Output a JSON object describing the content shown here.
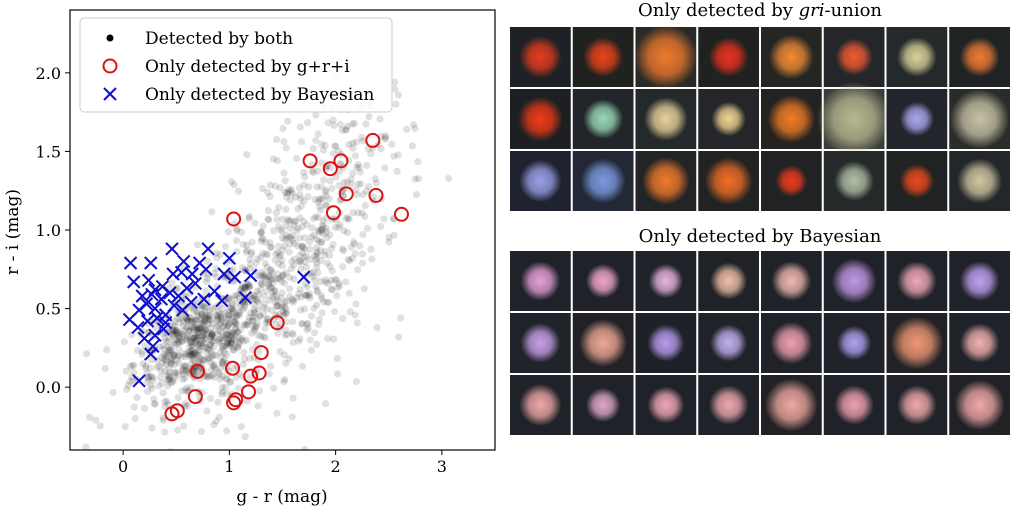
{
  "chart_data": {
    "type": "scatter",
    "xlabel": "g - r (mag)",
    "ylabel": "r - i (mag)",
    "xlim": [
      -0.5,
      3.5
    ],
    "ylim": [
      -0.4,
      2.4
    ],
    "xticks": [
      0,
      1,
      2,
      3
    ],
    "yticks": [
      0.0,
      0.5,
      1.0,
      1.5,
      2.0
    ],
    "xtick_labels": [
      "0",
      "1",
      "2",
      "3"
    ],
    "ytick_labels": [
      "0.0",
      "0.5",
      "1.0",
      "1.5",
      "2.0"
    ],
    "legend_position": "upper-left",
    "series": [
      {
        "name": "Detected by both",
        "marker": "filled-dot",
        "color": "#000000",
        "alpha": 0.12,
        "clusters": [
          {
            "cx": 0.7,
            "cy": 0.3,
            "sx": 0.3,
            "sy": 0.15,
            "n": 520
          },
          {
            "cx": 1.35,
            "cy": 0.62,
            "sx": 0.35,
            "sy": 0.22,
            "n": 260
          },
          {
            "cx": 1.75,
            "cy": 1.05,
            "sx": 0.35,
            "sy": 0.3,
            "n": 220
          },
          {
            "cx": 2.15,
            "cy": 1.4,
            "sx": 0.35,
            "sy": 0.28,
            "n": 120
          },
          {
            "cx": 1.1,
            "cy": 0.15,
            "sx": 0.55,
            "sy": 0.28,
            "n": 170
          }
        ]
      },
      {
        "name": "Only detected by g+r+i",
        "marker": "open-circle",
        "color": "#dd1111",
        "points": [
          [
            2.35,
            1.57
          ],
          [
            1.76,
            1.44
          ],
          [
            1.95,
            1.39
          ],
          [
            2.05,
            1.44
          ],
          [
            2.1,
            1.23
          ],
          [
            2.38,
            1.22
          ],
          [
            1.98,
            1.11
          ],
          [
            2.62,
            1.1
          ],
          [
            1.04,
            1.07
          ],
          [
            1.45,
            0.41
          ],
          [
            1.3,
            0.22
          ],
          [
            0.7,
            0.1
          ],
          [
            1.03,
            0.12
          ],
          [
            1.2,
            0.07
          ],
          [
            1.28,
            0.09
          ],
          [
            0.68,
            -0.06
          ],
          [
            1.18,
            -0.03
          ],
          [
            1.06,
            -0.08
          ],
          [
            1.04,
            -0.1
          ],
          [
            0.46,
            -0.17
          ],
          [
            0.51,
            -0.15
          ]
        ]
      },
      {
        "name": "Only detected by Bayesian",
        "marker": "x",
        "color": "#1010cc",
        "points": [
          [
            0.07,
            0.79
          ],
          [
            0.1,
            0.67
          ],
          [
            0.26,
            0.79
          ],
          [
            0.46,
            0.88
          ],
          [
            0.57,
            0.8
          ],
          [
            0.8,
            0.88
          ],
          [
            1.0,
            0.82
          ],
          [
            0.24,
            0.68
          ],
          [
            0.3,
            0.62
          ],
          [
            0.37,
            0.64
          ],
          [
            0.47,
            0.72
          ],
          [
            0.55,
            0.73
          ],
          [
            0.65,
            0.72
          ],
          [
            0.72,
            0.79
          ],
          [
            0.78,
            0.75
          ],
          [
            0.95,
            0.72
          ],
          [
            1.05,
            0.7
          ],
          [
            1.2,
            0.71
          ],
          [
            1.7,
            0.7
          ],
          [
            0.18,
            0.58
          ],
          [
            0.27,
            0.59
          ],
          [
            0.36,
            0.56
          ],
          [
            0.44,
            0.6
          ],
          [
            0.52,
            0.58
          ],
          [
            0.6,
            0.63
          ],
          [
            0.68,
            0.66
          ],
          [
            0.76,
            0.56
          ],
          [
            0.86,
            0.61
          ],
          [
            0.93,
            0.55
          ],
          [
            1.15,
            0.57
          ],
          [
            0.15,
            0.49
          ],
          [
            0.22,
            0.53
          ],
          [
            0.3,
            0.5
          ],
          [
            0.4,
            0.46
          ],
          [
            0.48,
            0.52
          ],
          [
            0.56,
            0.49
          ],
          [
            0.64,
            0.54
          ],
          [
            0.06,
            0.43
          ],
          [
            0.14,
            0.38
          ],
          [
            0.23,
            0.42
          ],
          [
            0.32,
            0.44
          ],
          [
            0.4,
            0.41
          ],
          [
            0.2,
            0.31
          ],
          [
            0.28,
            0.26
          ],
          [
            0.3,
            0.33
          ],
          [
            0.26,
            0.21
          ],
          [
            0.38,
            0.37
          ],
          [
            0.15,
            0.04
          ]
        ]
      }
    ]
  },
  "panels": [
    {
      "title_prefix": "Only detected by ",
      "title_italic": "gri",
      "title_suffix": "-union",
      "rows": [
        [
          {
            "bg": "#1e2226",
            "c": "#e43b1e",
            "r": 0.32
          },
          {
            "bg": "#20221f",
            "c": "#e8431c",
            "r": 0.3
          },
          {
            "bg": "#2a2a28",
            "c": "#f07a2c",
            "r": 0.48
          },
          {
            "bg": "#1f2220",
            "c": "#e8311e",
            "r": 0.3
          },
          {
            "bg": "#232623",
            "c": "#f08a34",
            "r": 0.34
          },
          {
            "bg": "#25262a",
            "c": "#f05a30",
            "r": 0.28
          },
          {
            "bg": "#24292a",
            "c": "#d8d09a",
            "r": 0.3
          },
          {
            "bg": "#1f2324",
            "c": "#ee7a34",
            "r": 0.3
          }
        ],
        [
          {
            "bg": "#1d1f22",
            "c": "#f03a16",
            "r": 0.34
          },
          {
            "bg": "#22262a",
            "c": "#9ad8b6",
            "r": 0.3
          },
          {
            "bg": "#24292a",
            "c": "#e8d29c",
            "r": 0.33
          },
          {
            "bg": "#24262a",
            "c": "#f0d490",
            "r": 0.26
          },
          {
            "bg": "#252321",
            "c": "#f07c24",
            "r": 0.36
          },
          {
            "bg": "#3a3d38",
            "c": "#b8b892",
            "r": 0.56
          },
          {
            "bg": "#22252c",
            "c": "#a8a8ee",
            "r": 0.26
          },
          {
            "bg": "#2a2c2a",
            "c": "#c8c2a6",
            "r": 0.45
          }
        ],
        [
          {
            "bg": "#1f2330",
            "c": "#9aa0e8",
            "r": 0.32
          },
          {
            "bg": "#222836",
            "c": "#7a9ae0",
            "r": 0.34
          },
          {
            "bg": "#232425",
            "c": "#f07a2c",
            "r": 0.36
          },
          {
            "bg": "#212322",
            "c": "#f06e26",
            "r": 0.36
          },
          {
            "bg": "#202224",
            "c": "#ee3a1e",
            "r": 0.24
          },
          {
            "bg": "#25292a",
            "c": "#b0c0a6",
            "r": 0.3
          },
          {
            "bg": "#202223",
            "c": "#ea4a1e",
            "r": 0.26
          },
          {
            "bg": "#24272a",
            "c": "#d0c6a0",
            "r": 0.34
          }
        ]
      ]
    },
    {
      "title_prefix": "Only detected by Bayesian",
      "title_italic": "",
      "title_suffix": "",
      "rows": [
        [
          {
            "bg": "#1f2228",
            "c": "#e8a0d8",
            "r": 0.3
          },
          {
            "bg": "#1f2228",
            "c": "#f0a8c8",
            "r": 0.26
          },
          {
            "bg": "#20232a",
            "c": "#e8b4e0",
            "r": 0.26
          },
          {
            "bg": "#1f2226",
            "c": "#f0c0a8",
            "r": 0.28
          },
          {
            "bg": "#1f2228",
            "c": "#f0b8b0",
            "r": 0.3
          },
          {
            "bg": "#20222a",
            "c": "#c098e8",
            "r": 0.34
          },
          {
            "bg": "#1f2228",
            "c": "#f0a8b8",
            "r": 0.3
          },
          {
            "bg": "#20222a",
            "c": "#c0a0f0",
            "r": 0.3
          }
        ],
        [
          {
            "bg": "#20232a",
            "c": "#c8a0e8",
            "r": 0.3
          },
          {
            "bg": "#222226",
            "c": "#f0a896",
            "r": 0.36
          },
          {
            "bg": "#1f2128",
            "c": "#b89cf0",
            "r": 0.28
          },
          {
            "bg": "#20222a",
            "c": "#c0b0f0",
            "r": 0.28
          },
          {
            "bg": "#1f2228",
            "c": "#f0a0b0",
            "r": 0.32
          },
          {
            "bg": "#20222a",
            "c": "#b0a0f0",
            "r": 0.26
          },
          {
            "bg": "#222226",
            "c": "#f09874",
            "r": 0.4
          },
          {
            "bg": "#1f2228",
            "c": "#f0b0b0",
            "r": 0.3
          }
        ],
        [
          {
            "bg": "#1f2228",
            "c": "#f0a8a8",
            "r": 0.32
          },
          {
            "bg": "#1f2228",
            "c": "#e0a8c8",
            "r": 0.26
          },
          {
            "bg": "#1f2228",
            "c": "#f0a8b8",
            "r": 0.28
          },
          {
            "bg": "#1f2228",
            "c": "#f0a8b0",
            "r": 0.3
          },
          {
            "bg": "#222226",
            "c": "#f0a8a0",
            "r": 0.4
          },
          {
            "bg": "#1f2228",
            "c": "#f0a0b0",
            "r": 0.3
          },
          {
            "bg": "#1f2228",
            "c": "#f0a8a8",
            "r": 0.3
          },
          {
            "bg": "#222226",
            "c": "#f0a8a8",
            "r": 0.38
          }
        ]
      ]
    }
  ]
}
